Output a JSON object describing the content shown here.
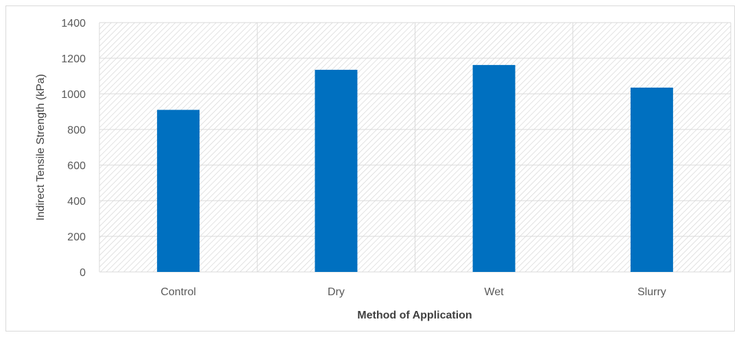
{
  "chart_data": {
    "type": "bar",
    "categories": [
      "Control",
      "Dry",
      "Wet",
      "Slurry"
    ],
    "values": [
      910,
      1135,
      1162,
      1035
    ],
    "xlabel": "Method of Application",
    "ylabel": "Indirect Tensile Strength (kPa)",
    "ylim": [
      0,
      1400
    ],
    "yticks": [
      0,
      200,
      400,
      600,
      800,
      1000,
      1200,
      1400
    ],
    "grid": true,
    "bar_color": "#0070c0",
    "plot_background": "diagonal-hatch"
  }
}
